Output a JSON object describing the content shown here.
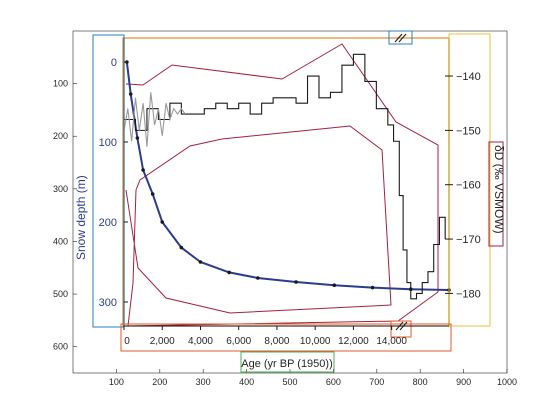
{
  "chart_data": {
    "type": "line",
    "outer_axes": {
      "xlim": [
        0,
        1000
      ],
      "ylim": [
        650,
        0
      ],
      "x_ticks": [
        "100",
        "200",
        "300",
        "400",
        "500",
        "600",
        "700",
        "800",
        "900",
        "1000"
      ],
      "y_ticks": [
        "100",
        "200",
        "300",
        "400",
        "500",
        "600"
      ]
    },
    "snow_axis": {
      "ylabel": "Snow depth (m)",
      "ylim": [
        -30,
        330
      ],
      "ticks": [
        "0",
        "100",
        "200",
        "300"
      ],
      "color": "#2b3c8c"
    },
    "isotope_axis": {
      "ylabel": "δD (‰ VSMOW)",
      "ylim": [
        -186,
        -133
      ],
      "ticks": [
        "-140",
        "-150",
        "-160",
        "-170",
        "-180"
      ]
    },
    "age_axis": {
      "xlabel": "Age (yr BP (1950))",
      "xlim": [
        0,
        17000
      ],
      "ticks": [
        "0",
        "2,000",
        "4,000",
        "6,000",
        "8,000",
        "10,000",
        "12,000",
        "14,000"
      ]
    },
    "series": [
      {
        "type": "line",
        "color": "#2b3c8c",
        "x": [
          150,
          350,
          700,
          1000,
          1500,
          2000,
          3000,
          4000,
          5500,
          7000,
          9000,
          11000,
          13000,
          15000,
          17000
        ],
        "y": [
          0,
          40,
          95,
          135,
          165,
          200,
          232,
          250,
          263,
          270,
          275,
          279,
          282,
          284,
          285
        ]
      },
      {
        "type": "line",
        "color": "#1a1a1a",
        "x": [
          0,
          600,
          1200,
          1800,
          2400,
          3000,
          3600,
          4200,
          4800,
          5400,
          6000,
          6600,
          7200,
          7800,
          8400,
          9000,
          9600,
          10200,
          10800,
          11400,
          12000,
          12600,
          13200,
          13800,
          14100,
          14400,
          14600,
          14800,
          15000,
          15300,
          15600,
          15900,
          16200,
          16500,
          16800
        ],
        "y": [
          -148,
          -150,
          -146,
          -148,
          -145,
          -147,
          -147,
          -146,
          -145,
          -146,
          -145,
          -147,
          -145,
          -144,
          -144,
          -145,
          -140,
          -144,
          -143,
          -138,
          -136,
          -141,
          -146,
          -149,
          -152,
          -162,
          -172,
          -178,
          -181,
          -180,
          -178,
          -176,
          -171,
          -166,
          -170
        ]
      },
      {
        "type": "line",
        "color": "#999999",
        "x": [
          0,
          200,
          400,
          600,
          800,
          1000,
          1200,
          1400,
          1600,
          1800,
          2000,
          2200,
          2400,
          2600,
          2800,
          3000,
          3200
        ],
        "y": [
          -150,
          -146,
          -152,
          -144,
          -150,
          -145,
          -153,
          -143,
          -149,
          -146,
          -151,
          -145,
          -148,
          -146,
          -147,
          -146,
          -147
        ]
      }
    ]
  }
}
